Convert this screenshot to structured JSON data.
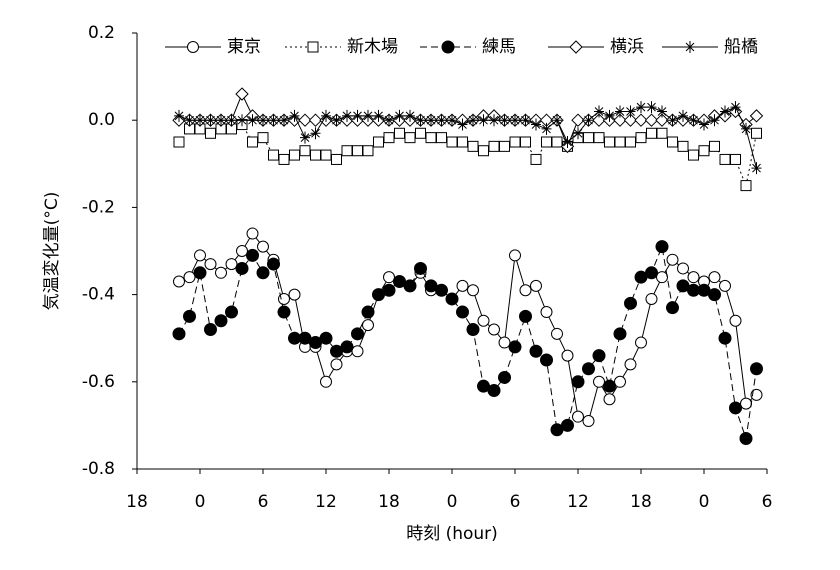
{
  "chart_data": {
    "type": "line",
    "xlabel": "時刻 (hour)",
    "ylabel": "気温変化量(°C)",
    "x": [
      4,
      5,
      6,
      7,
      8,
      9,
      10,
      11,
      12,
      13,
      14,
      15,
      16,
      17,
      18,
      19,
      20,
      21,
      22,
      23,
      24,
      25,
      26,
      27,
      28,
      29,
      30,
      31,
      32,
      33,
      34,
      35,
      36,
      37,
      38,
      39,
      40,
      41,
      42,
      43,
      44,
      45,
      46,
      47,
      48,
      49,
      50,
      51,
      52,
      53,
      54,
      55,
      56,
      57,
      58,
      59
    ],
    "xlim": [
      0,
      60
    ],
    "xticks": [
      {
        "value": 0,
        "label": "18"
      },
      {
        "value": 6,
        "label": "0"
      },
      {
        "value": 12,
        "label": "6"
      },
      {
        "value": 18,
        "label": "12"
      },
      {
        "value": 24,
        "label": "18"
      },
      {
        "value": 30,
        "label": "0"
      },
      {
        "value": 36,
        "label": "6"
      },
      {
        "value": 42,
        "label": "12"
      },
      {
        "value": 48,
        "label": "18"
      },
      {
        "value": 54,
        "label": "0"
      },
      {
        "value": 60,
        "label": "6"
      }
    ],
    "ylim": [
      -0.8,
      0.2
    ],
    "yticks": [
      0.2,
      {
        "value": 0,
        "label": "0.0"
      },
      -0.2,
      -0.4,
      -0.6,
      -0.8
    ],
    "grid": false,
    "legend": "top",
    "series": [
      {
        "name": "東京",
        "color": "#000000",
        "marker": "circle",
        "line_style": "solid",
        "values": [
          -0.37,
          -0.36,
          -0.31,
          -0.33,
          -0.35,
          -0.33,
          -0.3,
          -0.26,
          -0.29,
          -0.32,
          -0.41,
          -0.4,
          -0.52,
          -0.52,
          -0.6,
          -0.56,
          -0.53,
          -0.53,
          -0.47,
          -0.4,
          -0.36,
          -0.37,
          -0.38,
          -0.35,
          -0.39,
          -0.39,
          -0.41,
          -0.38,
          -0.39,
          -0.46,
          -0.48,
          -0.51,
          -0.31,
          -0.39,
          -0.38,
          -0.44,
          -0.49,
          -0.54,
          -0.68,
          -0.69,
          -0.6,
          -0.64,
          -0.6,
          -0.56,
          -0.51,
          -0.41,
          -0.36,
          -0.32,
          -0.34,
          -0.36,
          -0.37,
          -0.36,
          -0.38,
          -0.46,
          -0.65,
          -0.63
        ]
      },
      {
        "name": "新木場",
        "color": "#000000",
        "marker": "square",
        "line_style": "dotted",
        "values": [
          -0.05,
          -0.02,
          -0.02,
          -0.03,
          -0.02,
          -0.02,
          -0.01,
          -0.05,
          -0.04,
          -0.08,
          -0.09,
          -0.08,
          -0.07,
          -0.08,
          -0.08,
          -0.09,
          -0.07,
          -0.07,
          -0.07,
          -0.05,
          -0.04,
          -0.03,
          -0.04,
          -0.03,
          -0.04,
          -0.04,
          -0.05,
          -0.05,
          -0.06,
          -0.07,
          -0.06,
          -0.06,
          -0.05,
          -0.05,
          -0.09,
          -0.05,
          -0.05,
          -0.06,
          -0.04,
          -0.04,
          -0.04,
          -0.05,
          -0.05,
          -0.05,
          -0.04,
          -0.03,
          -0.03,
          -0.05,
          -0.06,
          -0.08,
          -0.07,
          -0.06,
          -0.09,
          -0.09,
          -0.15,
          -0.03
        ]
      },
      {
        "name": "練馬",
        "color": "#000000",
        "marker": "filled-circle",
        "line_style": "dashed",
        "values": [
          -0.49,
          -0.45,
          -0.35,
          -0.48,
          -0.46,
          -0.44,
          -0.34,
          -0.31,
          -0.35,
          -0.33,
          -0.44,
          -0.5,
          -0.5,
          -0.51,
          -0.5,
          -0.53,
          -0.52,
          -0.49,
          -0.44,
          -0.4,
          -0.39,
          -0.37,
          -0.38,
          -0.34,
          -0.38,
          -0.39,
          -0.41,
          -0.44,
          -0.48,
          -0.61,
          -0.62,
          -0.59,
          -0.52,
          -0.45,
          -0.53,
          -0.55,
          -0.71,
          -0.7,
          -0.6,
          -0.57,
          -0.54,
          -0.61,
          -0.49,
          -0.42,
          -0.36,
          -0.35,
          -0.29,
          -0.43,
          -0.38,
          -0.39,
          -0.39,
          -0.4,
          -0.5,
          -0.66,
          -0.73,
          -0.57
        ]
      },
      {
        "name": "横浜",
        "color": "#000000",
        "marker": "diamond",
        "line_style": "solid",
        "values": [
          0,
          0,
          0,
          0,
          0,
          0,
          0.06,
          0.01,
          0,
          0,
          0,
          0,
          0,
          0,
          0,
          0,
          0,
          0,
          0,
          0,
          0,
          0,
          0,
          0,
          0,
          0,
          0,
          0,
          0,
          0.01,
          0.01,
          0,
          0,
          0,
          0,
          0,
          0,
          -0.06,
          0,
          0,
          0,
          0,
          0,
          0,
          0,
          0,
          0,
          0,
          0,
          0,
          0,
          0.01,
          0.01,
          0.02,
          -0.01,
          0.01
        ]
      },
      {
        "name": "船橋",
        "color": "#000000",
        "marker": "star",
        "line_style": "solid",
        "values": [
          0.01,
          0,
          0,
          0,
          0,
          0,
          0,
          0,
          0,
          0,
          0,
          0.01,
          -0.04,
          -0.03,
          0.01,
          0,
          0.01,
          0.01,
          0.01,
          0.01,
          0,
          0.01,
          0.01,
          0,
          0,
          0,
          0,
          -0.01,
          0,
          0,
          0,
          0,
          0,
          0,
          -0.01,
          -0.02,
          0,
          -0.05,
          -0.03,
          0,
          0.02,
          0.01,
          0.02,
          0.02,
          0.03,
          0.03,
          0.02,
          0,
          0.01,
          0,
          -0.01,
          0,
          0.02,
          0.03,
          -0.02,
          -0.11
        ]
      }
    ]
  }
}
